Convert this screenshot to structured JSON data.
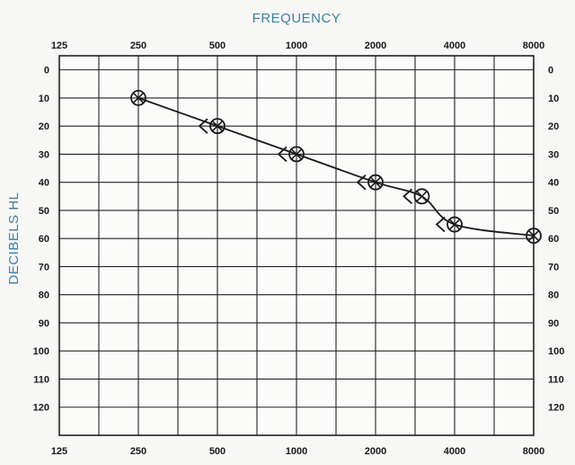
{
  "chart_data": {
    "type": "line",
    "title": "",
    "xlabel": "FREQUENCY",
    "ylabel": "DECIBELS HL",
    "x_ticks": [
      "125",
      "250",
      "500",
      "1000",
      "2000",
      "4000",
      "8000"
    ],
    "y_ticks": [
      "0",
      "10",
      "20",
      "30",
      "40",
      "50",
      "60",
      "70",
      "80",
      "90",
      "100",
      "110",
      "120"
    ],
    "xlim": [
      125,
      8000
    ],
    "ylim": [
      -5,
      130
    ],
    "x_scale": "log2",
    "y_inverted": true,
    "grid": true,
    "colors": {
      "axis_title": "#3a7fa6",
      "line": "#1a1a1a",
      "grid": "#222222"
    },
    "series": [
      {
        "points": [
          {
            "x": 250,
            "y": 10
          },
          {
            "x": 500,
            "y": 20
          },
          {
            "x": 1000,
            "y": 30
          },
          {
            "x": 2000,
            "y": 40
          },
          {
            "x": 3000,
            "y": 45
          },
          {
            "x": 4000,
            "y": 55
          },
          {
            "x": 8000,
            "y": 59
          }
        ],
        "marker": "circled-x",
        "bracket_marker_at": [
          500,
          1000,
          2000,
          3000,
          4000
        ]
      }
    ]
  }
}
